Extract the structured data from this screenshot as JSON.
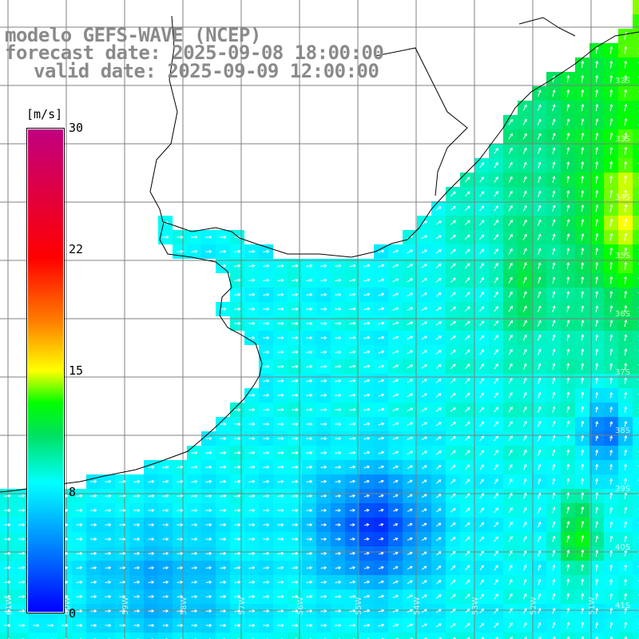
{
  "title": {
    "model": "modelo GEFS-WAVE (NCEP)",
    "forecast": "forecast date: 2025-09-08 18:00:00",
    "valid": "valid date: 2025-09-09 12:00:00"
  },
  "colorbar": {
    "unit": "[m/s]",
    "min": 0,
    "max": 30,
    "ticks": [
      "30",
      "22",
      "15",
      "8",
      "0"
    ],
    "stops": [
      {
        "value": 0,
        "color": "#0000ff"
      },
      {
        "value": 4,
        "color": "#0080ff"
      },
      {
        "value": 8,
        "color": "#00ffff"
      },
      {
        "value": 11,
        "color": "#00e060"
      },
      {
        "value": 13,
        "color": "#00ff00"
      },
      {
        "value": 15,
        "color": "#ffff00"
      },
      {
        "value": 18,
        "color": "#ff8000"
      },
      {
        "value": 22,
        "color": "#ff0000"
      },
      {
        "value": 30,
        "color": "#c00080"
      }
    ]
  },
  "grid": {
    "lat_labels": [
      "32S",
      "33S",
      "34S",
      "35S",
      "36S",
      "37S",
      "38S",
      "39S",
      "40S",
      "41S"
    ],
    "lon_labels": [
      "61W",
      "60W",
      "59W",
      "58W",
      "57W",
      "56W",
      "55W",
      "54W",
      "53W",
      "52W",
      "51W",
      "50W"
    ]
  },
  "regions": {
    "land": "South America (Uruguay / Argentina / southern Brazil)",
    "sea": "South Atlantic — Río de la Plata estuary"
  },
  "colors": {
    "land": "#ffffff",
    "coast": "#000000",
    "grid": "#808080",
    "title_text": "#8a8a8a",
    "arrows": "#ffffff"
  }
}
